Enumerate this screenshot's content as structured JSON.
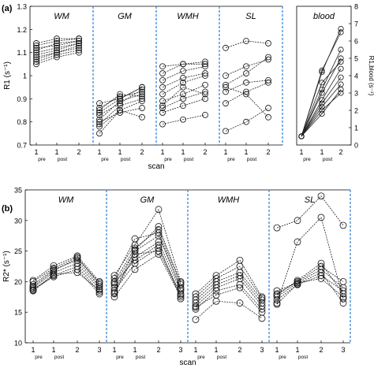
{
  "panel_a_label": "(a)",
  "panel_b_label": "(b)",
  "chart_data": [
    {
      "type": "line",
      "panel": "a",
      "groups": [
        "WM",
        "GM",
        "WMH",
        "SL"
      ],
      "ylabel": "R1 (s⁻¹)",
      "xlabel": "scan",
      "x_ticks": [
        [
          "1",
          "pre"
        ],
        [
          "1",
          "post"
        ],
        [
          "2",
          ""
        ]
      ],
      "ylim": [
        0.7,
        1.3
      ],
      "y_ticks": [
        "0.7",
        "0.8",
        "0.9",
        "1",
        "1.1",
        "1.2",
        "1.3"
      ],
      "series": {
        "WM": [
          [
            1.05,
            1.08,
            1.1
          ],
          [
            1.08,
            1.1,
            1.13
          ],
          [
            1.1,
            1.12,
            1.14
          ],
          [
            1.12,
            1.13,
            1.15
          ],
          [
            1.13,
            1.15,
            1.16
          ],
          [
            1.14,
            1.16,
            1.16
          ],
          [
            1.07,
            1.1,
            1.12
          ],
          [
            1.09,
            1.11,
            1.14
          ],
          [
            1.11,
            1.14,
            1.15
          ],
          [
            1.06,
            1.09,
            1.11
          ]
        ],
        "GM": [
          [
            0.75,
            0.85,
            0.89
          ],
          [
            0.79,
            0.87,
            0.9
          ],
          [
            0.81,
            0.89,
            0.92
          ],
          [
            0.83,
            0.88,
            0.94
          ],
          [
            0.84,
            0.9,
            0.95
          ],
          [
            0.86,
            0.91,
            0.93
          ],
          [
            0.88,
            0.9,
            0.95
          ],
          [
            0.8,
            0.84,
            0.86
          ],
          [
            0.78,
            0.85,
            0.82
          ],
          [
            0.85,
            0.92,
            0.91
          ]
        ],
        "WMH": [
          [
            0.79,
            0.81,
            0.83
          ],
          [
            0.84,
            0.87,
            0.9
          ],
          [
            0.86,
            0.9,
            0.93
          ],
          [
            0.89,
            0.92,
            0.96
          ],
          [
            0.92,
            0.97,
            1.0
          ],
          [
            0.95,
            0.99,
            1.01
          ],
          [
            0.98,
            1.02,
            1.04
          ],
          [
            1.01,
            1.05,
            1.05
          ],
          [
            1.04,
            1.05,
            1.06
          ],
          [
            0.87,
            0.95,
            0.92
          ]
        ],
        "SL": [
          [
            0.76,
            0.8,
            0.86
          ],
          [
            0.88,
            0.93,
            0.97
          ],
          [
            0.93,
            0.97,
            0.98
          ],
          [
            0.96,
            1.01,
            1.08
          ],
          [
            1.0,
            1.04,
            1.07
          ],
          [
            1.12,
            1.15,
            1.14
          ],
          [
            0.95,
            0.92,
            0.82
          ]
        ]
      }
    },
    {
      "type": "line",
      "panel": "a-blood",
      "title": "blood",
      "ylabel": "R1,blood (s⁻¹)",
      "x_ticks": [
        [
          "1",
          "pre"
        ],
        [
          "1",
          "post"
        ],
        [
          "2",
          ""
        ]
      ],
      "ylim": [
        0,
        8
      ],
      "y_ticks": [
        "0",
        "1",
        "2",
        "3",
        "4",
        "5",
        "6",
        "7",
        "8"
      ],
      "series": [
        [
          0.5,
          4.2,
          6.7
        ],
        [
          0.5,
          4.3,
          6.5
        ],
        [
          0.5,
          3.2,
          5.5
        ],
        [
          0.5,
          3.0,
          5.0
        ],
        [
          0.5,
          2.6,
          4.4
        ],
        [
          0.5,
          2.4,
          3.9
        ],
        [
          0.5,
          2.2,
          3.5
        ],
        [
          0.5,
          1.8,
          3.2
        ],
        [
          0.5,
          3.6,
          4.8
        ],
        [
          0.5,
          2.0,
          3.0
        ]
      ]
    },
    {
      "type": "line",
      "panel": "b",
      "groups": [
        "WM",
        "GM",
        "WMH",
        "SL"
      ],
      "ylabel": "R2* (s⁻¹)",
      "xlabel": "scan",
      "x_ticks": [
        [
          "1",
          "pre"
        ],
        [
          "1",
          "post"
        ],
        [
          "2",
          ""
        ],
        [
          "3",
          ""
        ]
      ],
      "ylim": [
        10,
        35
      ],
      "y_ticks": [
        "10",
        "15",
        "20",
        "25",
        "30",
        "35"
      ],
      "series": {
        "WM": [
          [
            18.5,
            21.0,
            22.5,
            18.3
          ],
          [
            19.0,
            21.5,
            23.0,
            18.8
          ],
          [
            19.5,
            22.0,
            23.5,
            19.2
          ],
          [
            20.0,
            22.2,
            24.0,
            19.5
          ],
          [
            18.8,
            20.8,
            22.0,
            18.0
          ],
          [
            19.2,
            21.8,
            23.8,
            19.8
          ],
          [
            20.2,
            22.6,
            24.2,
            20.0
          ],
          [
            18.6,
            21.2,
            21.5,
            18.6
          ]
        ],
        "GM": [
          [
            17.5,
            22.0,
            24.5,
            17.5
          ],
          [
            18.5,
            23.0,
            25.5,
            18.0
          ],
          [
            19.0,
            24.0,
            26.5,
            18.5
          ],
          [
            19.5,
            25.0,
            27.5,
            19.0
          ],
          [
            20.0,
            25.5,
            28.5,
            19.5
          ],
          [
            21.0,
            26.0,
            31.8,
            20.0
          ],
          [
            18.0,
            24.5,
            25.0,
            17.8
          ],
          [
            20.5,
            27.0,
            28.0,
            18.8
          ],
          [
            19.8,
            23.5,
            26.0,
            17.2
          ],
          [
            18.2,
            25.2,
            29.0,
            19.8
          ]
        ],
        "WMH": [
          [
            13.8,
            16.8,
            16.5,
            14.0
          ],
          [
            15.5,
            18.5,
            19.5,
            15.5
          ],
          [
            16.0,
            19.0,
            20.5,
            16.0
          ],
          [
            16.5,
            19.5,
            21.0,
            16.5
          ],
          [
            17.0,
            20.0,
            21.5,
            17.0
          ],
          [
            17.5,
            20.5,
            22.5,
            17.3
          ],
          [
            18.0,
            21.0,
            23.5,
            17.5
          ],
          [
            15.8,
            17.8,
            19.0,
            15.0
          ]
        ],
        "SL": [
          [
            28.8,
            30.0,
            34.0,
            29.2
          ],
          [
            16.5,
            26.5,
            30.5,
            17.2
          ],
          [
            17.0,
            19.5,
            21.0,
            18.5
          ],
          [
            17.5,
            19.8,
            22.0,
            19.0
          ],
          [
            18.0,
            20.0,
            22.5,
            20.0
          ],
          [
            18.5,
            19.8,
            20.5,
            17.5
          ],
          [
            16.3,
            19.6,
            21.5,
            16.5
          ],
          [
            17.8,
            20.2,
            23.0,
            18.0
          ]
        ]
      }
    }
  ]
}
